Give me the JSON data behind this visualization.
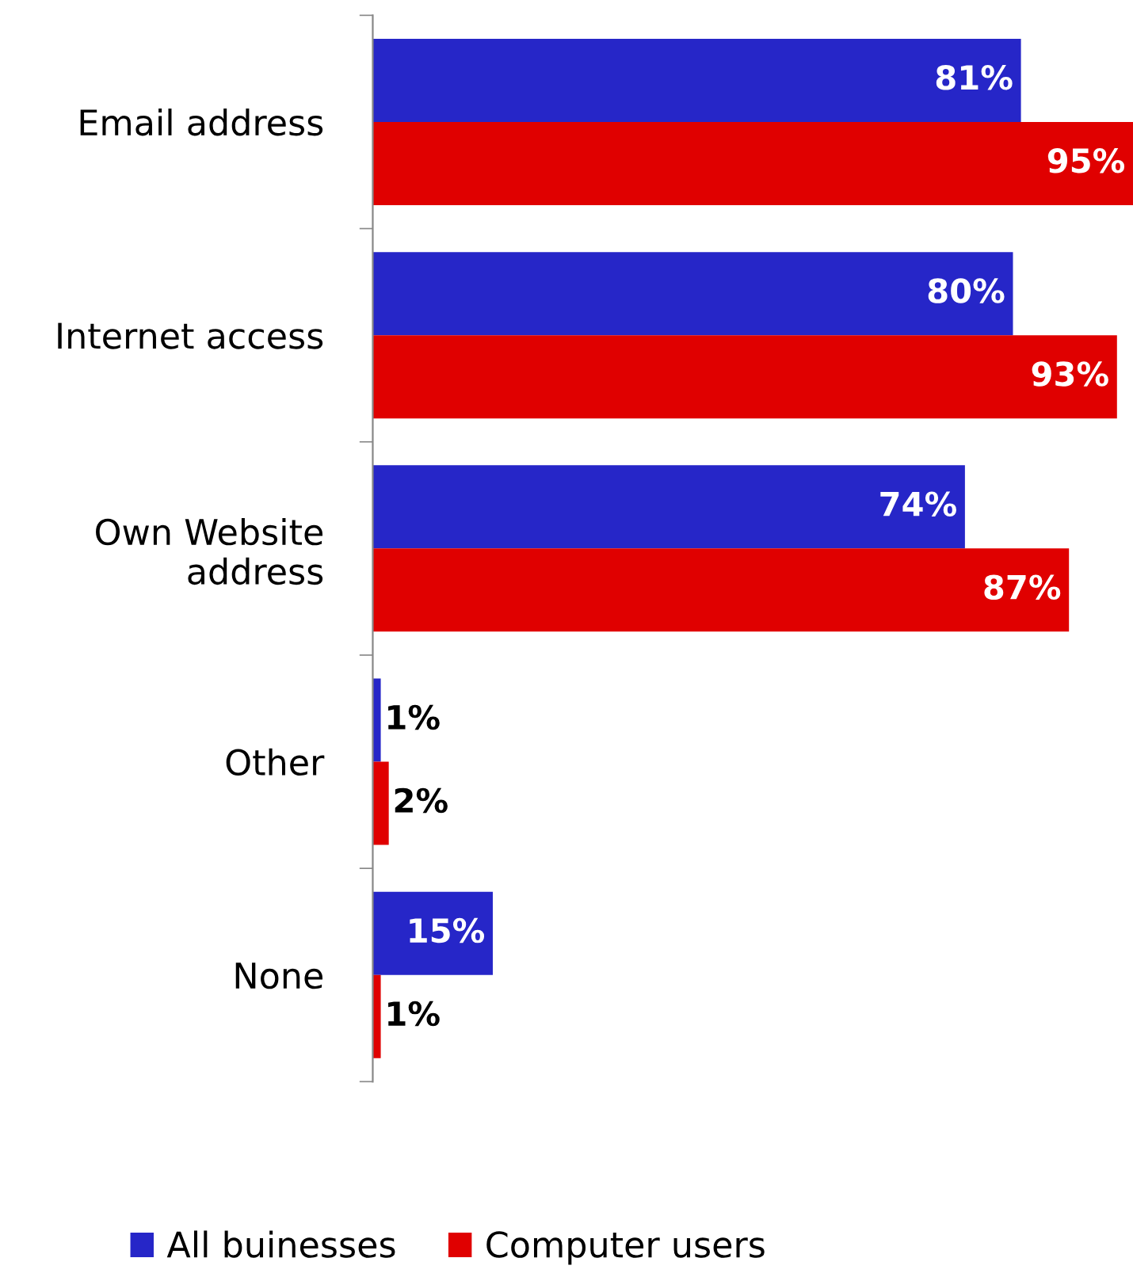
{
  "chart_data": {
    "type": "bar",
    "orientation": "horizontal",
    "categories": [
      "Email address",
      "Internet access",
      "Own Website\naddress",
      "Other",
      "None"
    ],
    "series": [
      {
        "name": "All buinesses",
        "color": "#2626c8",
        "values": [
          81,
          80,
          74,
          1,
          15
        ],
        "value_labels": [
          "81%",
          "80%",
          "74%",
          "1%",
          "15%"
        ]
      },
      {
        "name": "Computer users",
        "color": "#e00000",
        "values": [
          95,
          93,
          87,
          2,
          1
        ],
        "value_labels": [
          "95%",
          "93%",
          "87%",
          "2%",
          "1%"
        ]
      }
    ],
    "legend": "bottom",
    "grid": false,
    "tick_labels": "y"
  }
}
